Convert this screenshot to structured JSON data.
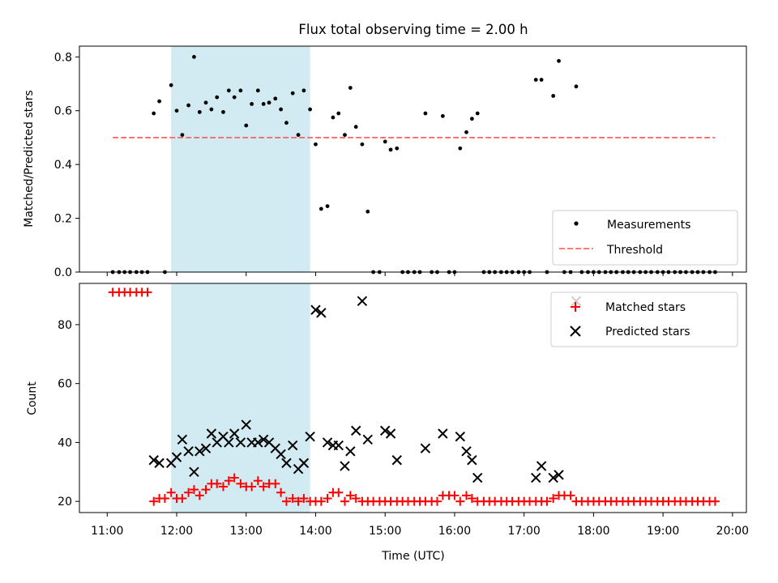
{
  "chart_data": [
    {
      "type": "scatter",
      "title": "Flux total observing time = 2.00 h",
      "xlabel": "",
      "ylabel": "Matched/Predicted stars",
      "xlim": [
        10.6,
        20.2
      ],
      "ylim": [
        0,
        0.84
      ],
      "yticks": [
        0,
        0.2,
        0.4,
        0.6,
        0.8
      ],
      "ytick_labels": [
        "0.0",
        "0.2",
        "0.4",
        "0.6",
        "0.8"
      ],
      "xticks": [
        11,
        12,
        13,
        14,
        15,
        16,
        17,
        18,
        19,
        20
      ],
      "highlight_span": [
        11.92,
        13.92
      ],
      "legend": {
        "placement": "lower-right",
        "entries": [
          "Measurements",
          "Threshold"
        ]
      },
      "threshold": {
        "name": "Threshold",
        "value": 0.5,
        "x_range": [
          11.08,
          19.75
        ]
      },
      "series": [
        {
          "name": "Measurements",
          "x": [
            11.08,
            11.17,
            11.25,
            11.33,
            11.42,
            11.5,
            11.58,
            11.67,
            11.75,
            11.83,
            11.92,
            12.0,
            12.08,
            12.17,
            12.25,
            12.33,
            12.42,
            12.5,
            12.58,
            12.67,
            12.75,
            12.83,
            12.92,
            13.0,
            13.08,
            13.17,
            13.25,
            13.33,
            13.42,
            13.5,
            13.58,
            13.67,
            13.75,
            13.83,
            13.92,
            14.0,
            14.08,
            14.17,
            14.25,
            14.33,
            14.42,
            14.5,
            14.58,
            14.67,
            14.75,
            14.83,
            14.92,
            15.0,
            15.08,
            15.17,
            15.25,
            15.33,
            15.42,
            15.5,
            15.58,
            15.67,
            15.75,
            15.83,
            15.92,
            16.0,
            16.08,
            16.17,
            16.25,
            16.33,
            16.42,
            16.5,
            16.58,
            16.67,
            16.75,
            16.83,
            16.92,
            17.0,
            17.08,
            17.17,
            17.25,
            17.33,
            17.42,
            17.5,
            17.58,
            17.67,
            17.75,
            17.83,
            17.92,
            18.0,
            18.08,
            18.17,
            18.25,
            18.33,
            18.42,
            18.5,
            18.58,
            18.67,
            18.75,
            18.83,
            18.92,
            19.0,
            19.08,
            19.17,
            19.25,
            19.33,
            19.42,
            19.5,
            19.58,
            19.67,
            19.75
          ],
          "y": [
            0,
            0,
            0,
            0,
            0,
            0,
            0,
            0.59,
            0.635,
            0,
            0.695,
            0.6,
            0.51,
            0.62,
            0.8,
            0.595,
            0.63,
            0.605,
            0.65,
            0.595,
            0.675,
            0.65,
            0.675,
            0.545,
            0.625,
            0.675,
            0.625,
            0.63,
            0.645,
            0.605,
            0.555,
            0.665,
            0.51,
            0.675,
            0.605,
            0.475,
            0.235,
            0.245,
            0.575,
            0.59,
            0.51,
            0.685,
            0.54,
            0.475,
            0.225,
            0,
            0,
            0.485,
            0.455,
            0.46,
            0,
            0,
            0,
            0,
            0.59,
            0,
            0,
            0.58,
            0,
            0,
            0.46,
            0.52,
            0.57,
            0.59,
            0,
            0,
            0,
            0,
            0,
            0,
            0,
            0,
            0,
            0.715,
            0.715,
            0,
            0.655,
            0.785,
            0,
            0,
            0.69,
            0,
            0,
            0,
            0,
            0,
            0,
            0,
            0,
            0,
            0,
            0,
            0,
            0,
            0,
            0,
            0,
            0,
            0,
            0,
            0,
            0,
            0,
            0,
            0
          ]
        }
      ]
    },
    {
      "type": "scatter",
      "title": "",
      "xlabel": "Time (UTC)",
      "ylabel": "Count",
      "xlim": [
        10.6,
        20.2
      ],
      "ylim": [
        16.2,
        94
      ],
      "yticks": [
        20,
        40,
        60,
        80
      ],
      "ytick_labels": [
        "20",
        "40",
        "60",
        "80"
      ],
      "xticks": [
        11,
        12,
        13,
        14,
        15,
        16,
        17,
        18,
        19,
        20
      ],
      "xtick_labels": [
        "11:00",
        "12:00",
        "13:00",
        "14:00",
        "15:00",
        "16:00",
        "17:00",
        "18:00",
        "19:00",
        "20:00"
      ],
      "highlight_span": [
        11.92,
        13.92
      ],
      "legend": {
        "placement": "upper-right",
        "entries": [
          "Matched stars",
          "Predicted stars"
        ]
      },
      "series": [
        {
          "name": "Matched stars",
          "color": "#ff0000",
          "marker": "plus",
          "x": [
            11.08,
            11.17,
            11.25,
            11.33,
            11.42,
            11.5,
            11.58,
            11.67,
            11.75,
            11.83,
            11.92,
            12.0,
            12.08,
            12.17,
            12.25,
            12.33,
            12.42,
            12.5,
            12.58,
            12.67,
            12.75,
            12.83,
            12.92,
            13.0,
            13.08,
            13.17,
            13.25,
            13.33,
            13.42,
            13.5,
            13.58,
            13.67,
            13.75,
            13.83,
            13.92,
            14.0,
            14.08,
            14.17,
            14.25,
            14.33,
            14.42,
            14.5,
            14.58,
            14.67,
            14.75,
            14.83,
            14.92,
            15.0,
            15.08,
            15.17,
            15.25,
            15.33,
            15.42,
            15.5,
            15.58,
            15.67,
            15.75,
            15.83,
            15.92,
            16.0,
            16.08,
            16.17,
            16.25,
            16.33,
            16.42,
            16.5,
            16.58,
            16.67,
            16.75,
            16.83,
            16.92,
            17.0,
            17.08,
            17.17,
            17.25,
            17.33,
            17.42,
            17.5,
            17.58,
            17.67,
            17.75,
            17.83,
            17.92,
            18.0,
            18.08,
            18.17,
            18.25,
            18.33,
            18.42,
            18.5,
            18.58,
            18.67,
            18.75,
            18.83,
            18.92,
            19.0,
            19.08,
            19.17,
            19.25,
            19.33,
            19.42,
            19.5,
            19.58,
            19.67,
            19.75
          ],
          "y": [
            91,
            91,
            91,
            91,
            91,
            91,
            91,
            20,
            21,
            21,
            23,
            21,
            21,
            23,
            24,
            22,
            24,
            26,
            26,
            25,
            27,
            28,
            26,
            25,
            25,
            27,
            25,
            26,
            26,
            23,
            20,
            21,
            20,
            21,
            20,
            20,
            20,
            21,
            23,
            23,
            20,
            22,
            21,
            20,
            20,
            20,
            20,
            20,
            20,
            20,
            20,
            20,
            20,
            20,
            20,
            20,
            20,
            22,
            22,
            22,
            20,
            22,
            21,
            20,
            20,
            20,
            20,
            20,
            20,
            20,
            20,
            20,
            20,
            20,
            20,
            20,
            21,
            22,
            22,
            22,
            20,
            20,
            20,
            20,
            20,
            20,
            20,
            20,
            20,
            20,
            20,
            20,
            20,
            20,
            20,
            20,
            20,
            20,
            20,
            20,
            20,
            20,
            20,
            20,
            20
          ]
        },
        {
          "name": "Predicted stars",
          "color": "#000000",
          "marker": "x",
          "x": [
            11.67,
            11.75,
            11.92,
            12.0,
            12.08,
            12.17,
            12.25,
            12.33,
            12.42,
            12.5,
            12.58,
            12.67,
            12.75,
            12.83,
            12.92,
            13.0,
            13.08,
            13.17,
            13.25,
            13.33,
            13.42,
            13.5,
            13.58,
            13.67,
            13.75,
            13.83,
            13.92,
            14.0,
            14.08,
            14.17,
            14.25,
            14.33,
            14.42,
            14.5,
            14.58,
            14.67,
            14.75,
            15.0,
            15.08,
            15.17,
            15.58,
            15.83,
            16.08,
            16.17,
            16.25,
            16.33,
            17.17,
            17.25,
            17.42,
            17.5,
            17.75
          ],
          "y": [
            34,
            33,
            33,
            35,
            41,
            37,
            30,
            37,
            38,
            43,
            40,
            42,
            40,
            43,
            40,
            46,
            40,
            40,
            41,
            40,
            38,
            36,
            33,
            39,
            31,
            33,
            42,
            85,
            84,
            40,
            39,
            39,
            32,
            37,
            44,
            88,
            41,
            44,
            43,
            34,
            38,
            43,
            42,
            37,
            34,
            28,
            28,
            32,
            28,
            29,
            88
          ]
        }
      ]
    }
  ]
}
